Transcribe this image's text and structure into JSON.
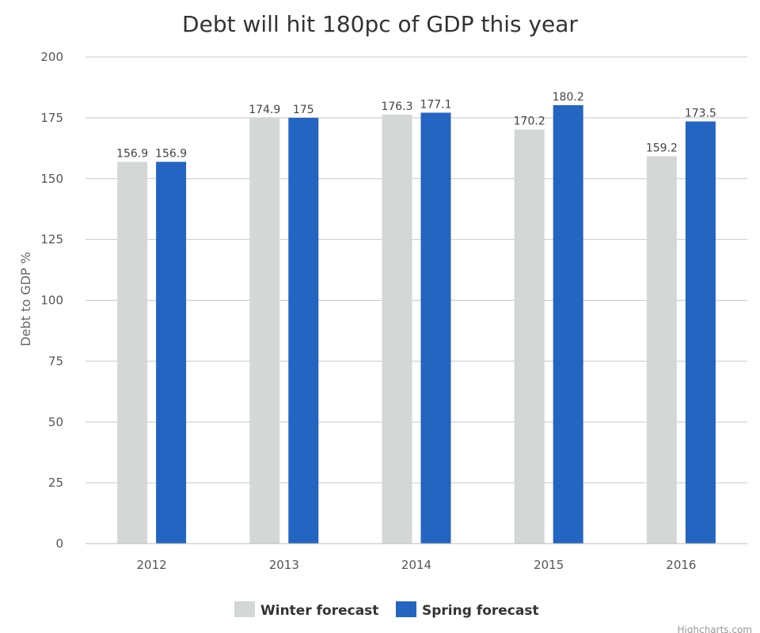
{
  "chart_data": {
    "type": "bar",
    "title": "Debt will hit 180pc of GDP this year",
    "ylabel": "Debt to GDP %",
    "xlabel": "",
    "categories": [
      "2012",
      "2013",
      "2014",
      "2015",
      "2016"
    ],
    "ylim": [
      0,
      200
    ],
    "yticks": [
      0,
      25,
      50,
      75,
      100,
      125,
      150,
      175,
      200
    ],
    "grid": true,
    "legend_position": "bottom-center",
    "series": [
      {
        "name": "Winter forecast",
        "color": "#d3d7d5",
        "values": [
          156.9,
          174.9,
          176.3,
          170.2,
          159.2
        ],
        "labels": [
          "156.9",
          "174.9",
          "176.3",
          "170.2",
          "159.2"
        ]
      },
      {
        "name": "Spring forecast",
        "color": "#2365c1",
        "values": [
          156.9,
          175,
          177.1,
          180.2,
          173.5
        ],
        "labels": [
          "156.9",
          "175",
          "177.1",
          "180.2",
          "173.5"
        ]
      }
    ]
  },
  "credits": "Highcharts.com"
}
